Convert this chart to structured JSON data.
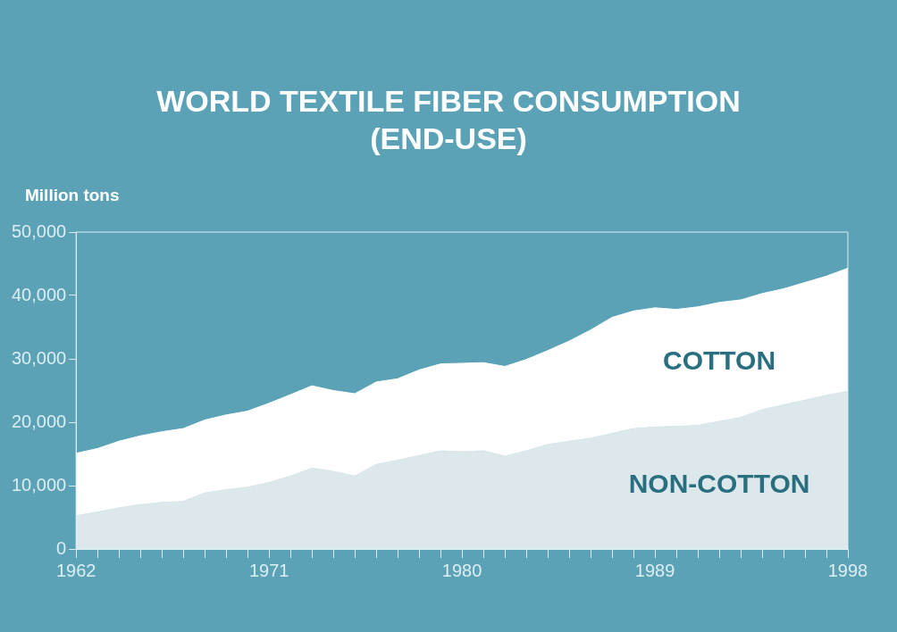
{
  "chart_data": {
    "type": "area",
    "title": "WORLD TEXTILE FIBER CONSUMPTION\n(END-USE)",
    "ylabel": "Million tons",
    "stacked": true,
    "x": [
      1962,
      1963,
      1964,
      1965,
      1966,
      1967,
      1968,
      1969,
      1970,
      1971,
      1972,
      1973,
      1974,
      1975,
      1976,
      1977,
      1978,
      1979,
      1980,
      1981,
      1982,
      1983,
      1984,
      1985,
      1986,
      1987,
      1988,
      1989,
      1990,
      1991,
      1992,
      1993,
      1994,
      1995,
      1996,
      1997,
      1998
    ],
    "series": [
      {
        "name": "NON-COTTON",
        "color": "#dce8ec",
        "values": [
          5250,
          5850,
          6500,
          7000,
          7350,
          7500,
          8850,
          9350,
          9750,
          10500,
          11500,
          12750,
          12250,
          11500,
          13350,
          14000,
          14750,
          15500,
          15350,
          15500,
          14650,
          15500,
          16500,
          17000,
          17500,
          18250,
          19000,
          19250,
          19350,
          19500,
          20150,
          20750,
          22000,
          22750,
          23500,
          24250,
          24900
        ]
      },
      {
        "name": "COTTON",
        "color": "#ffffff",
        "values": [
          9850,
          10000,
          10500,
          10850,
          11150,
          11500,
          11500,
          11800,
          12000,
          12500,
          12850,
          13000,
          12750,
          13000,
          13000,
          12850,
          13500,
          13700,
          13950,
          13900,
          14150,
          14400,
          14800,
          15800,
          17050,
          18300,
          18550,
          18800,
          18450,
          18700,
          18750,
          18550,
          18300,
          18300,
          18550,
          18800,
          19400
        ]
      }
    ],
    "xlim": [
      1962,
      1998
    ],
    "xticks": [
      1962,
      {
        "value": 1963,
        "label": null
      },
      {
        "value": 1964,
        "label": null
      },
      {
        "value": 1965,
        "label": null
      },
      {
        "value": 1966,
        "label": null
      },
      {
        "value": 1967,
        "label": null
      },
      {
        "value": 1968,
        "label": null
      },
      {
        "value": 1969,
        "label": null
      },
      {
        "value": 1970,
        "label": null
      },
      1971,
      {
        "value": 1972,
        "label": null
      },
      {
        "value": 1973,
        "label": null
      },
      {
        "value": 1974,
        "label": null
      },
      {
        "value": 1975,
        "label": null
      },
      {
        "value": 1976,
        "label": null
      },
      {
        "value": 1977,
        "label": null
      },
      {
        "value": 1978,
        "label": null
      },
      {
        "value": 1979,
        "label": null
      },
      1980,
      {
        "value": 1981,
        "label": null
      },
      {
        "value": 1982,
        "label": null
      },
      {
        "value": 1983,
        "label": null
      },
      {
        "value": 1984,
        "label": null
      },
      {
        "value": 1985,
        "label": null
      },
      {
        "value": 1986,
        "label": null
      },
      {
        "value": 1987,
        "label": null
      },
      {
        "value": 1988,
        "label": null
      },
      1989,
      {
        "value": 1990,
        "label": null
      },
      {
        "value": 1991,
        "label": null
      },
      {
        "value": 1992,
        "label": null
      },
      {
        "value": 1993,
        "label": null
      },
      {
        "value": 1994,
        "label": null
      },
      {
        "value": 1995,
        "label": null
      },
      {
        "value": 1996,
        "label": null
      },
      {
        "value": 1997,
        "label": null
      },
      1998
    ],
    "ylim": [
      0,
      50000
    ],
    "yticks": [
      0,
      {
        "value": 10000,
        "label": "10,000"
      },
      {
        "value": 20000,
        "label": "20,000"
      },
      {
        "value": 30000,
        "label": "30,000"
      },
      {
        "value": 40000,
        "label": "40,000"
      },
      {
        "value": 50000,
        "label": "50,000"
      }
    ]
  }
}
